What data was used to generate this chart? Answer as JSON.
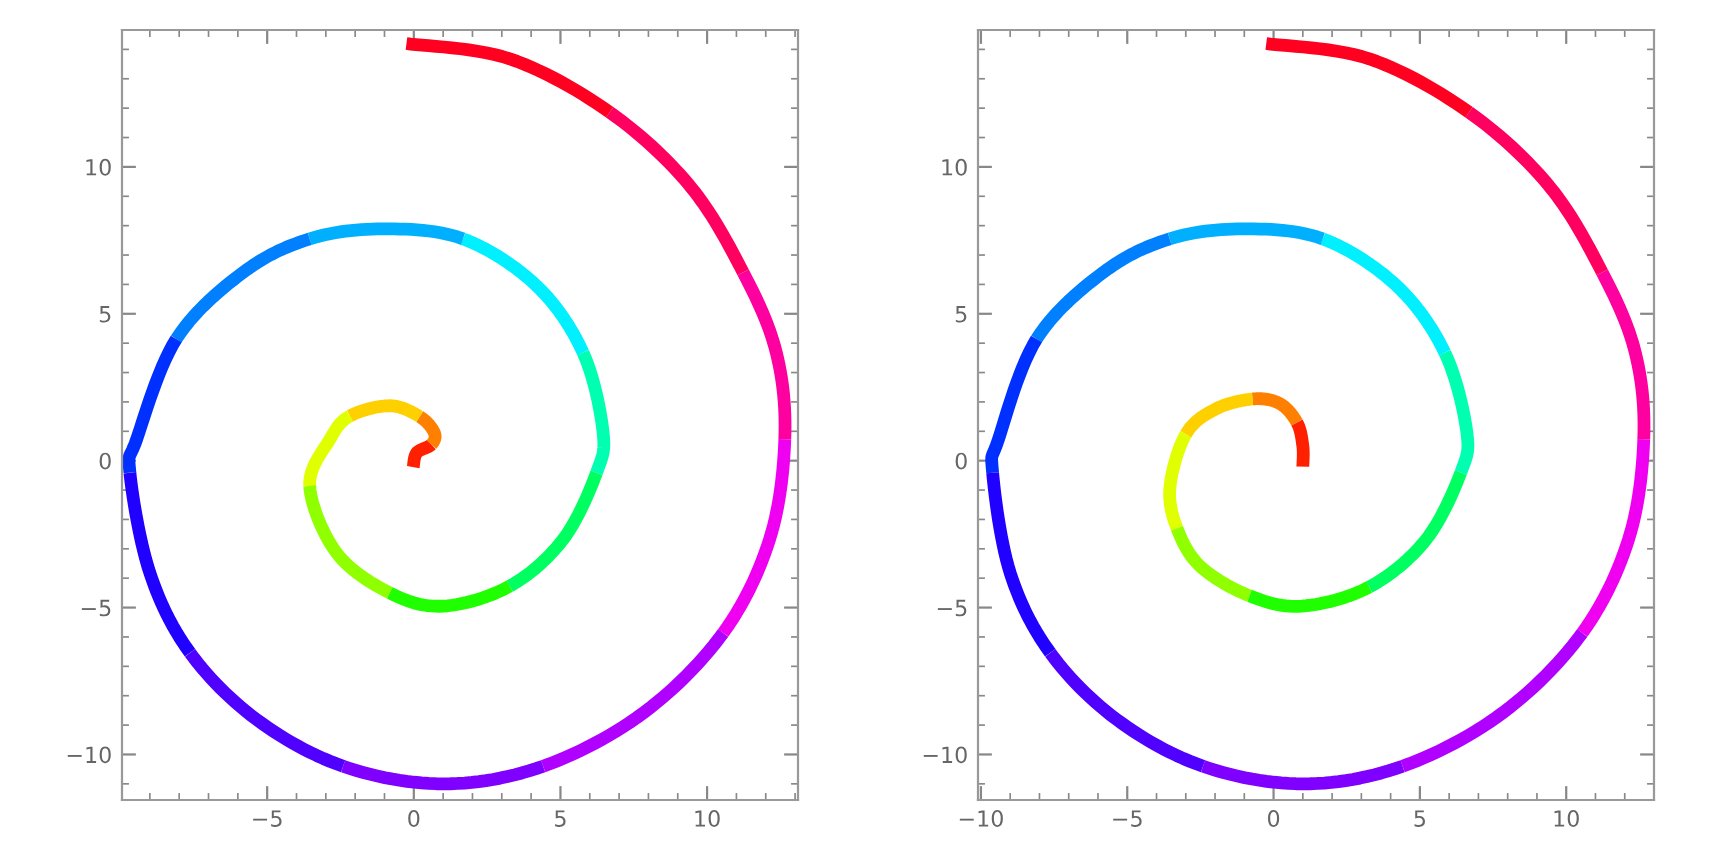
{
  "chart_data": [
    {
      "type": "line",
      "xlim": [
        -9.95,
        13.1
      ],
      "ylim": [
        -11.55,
        14.66
      ],
      "xticks": [
        -5,
        0,
        5,
        10
      ],
      "yticks": [
        -10,
        -5,
        0,
        5,
        10
      ],
      "grid": false,
      "marker": "none",
      "line_style": "solid",
      "series": [
        {
          "color": "#ff2000",
          "x": [
            -0.02,
            0.1,
            0.6
          ],
          "values": [
            -0.22,
            0.27,
            0.55
          ]
        },
        {
          "color": "#ff8000",
          "x": [
            0.6,
            0.7,
            0.2
          ],
          "values": [
            0.55,
            0.95,
            1.5
          ]
        },
        {
          "color": "#ffd000",
          "x": [
            0.2,
            -0.82,
            -2.18
          ],
          "values": [
            1.5,
            1.87,
            1.52
          ]
        },
        {
          "color": "#e0ff00",
          "x": [
            -2.18,
            -2.86,
            -3.55
          ],
          "values": [
            1.52,
            0.73,
            -0.86
          ]
        },
        {
          "color": "#90ff00",
          "x": [
            -3.55,
            -2.64,
            -0.82
          ],
          "values": [
            -0.86,
            -3.13,
            -4.5
          ]
        },
        {
          "color": "#20ff00",
          "x": [
            -0.82,
            1.0,
            3.27
          ],
          "values": [
            -4.5,
            -4.95,
            -4.27
          ]
        },
        {
          "color": "#00ff60",
          "x": [
            3.27,
            5.09,
            6.23
          ],
          "values": [
            -4.27,
            -2.68,
            -0.41
          ]
        },
        {
          "color": "#00ffb0",
          "x": [
            6.23,
            6.45,
            5.77
          ],
          "values": [
            -0.41,
            1.0,
            3.68
          ]
        },
        {
          "color": "#00f0ff",
          "x": [
            5.77,
            4.18,
            1.68
          ],
          "values": [
            3.68,
            5.96,
            7.55
          ]
        },
        {
          "color": "#00b0ff",
          "x": [
            1.68,
            -1.05,
            -3.55
          ],
          "values": [
            7.55,
            7.89,
            7.55
          ]
        },
        {
          "color": "#0080ff",
          "x": [
            -3.55,
            -5.82,
            -8.1
          ],
          "values": [
            7.55,
            6.41,
            4.14
          ]
        },
        {
          "color": "#0030ff",
          "x": [
            -8.1,
            -9.45,
            -9.68
          ],
          "values": [
            4.14,
            0.73,
            -0.41
          ]
        },
        {
          "color": "#2000ff",
          "x": [
            -9.68,
            -9.0,
            -7.63
          ],
          "values": [
            -0.41,
            -3.82,
            -6.54
          ]
        },
        {
          "color": "#5000ff",
          "x": [
            -7.63,
            -5.36,
            -2.41
          ],
          "values": [
            -6.54,
            -8.81,
            -10.4
          ]
        },
        {
          "color": "#8000ff",
          "x": [
            -2.41,
            1.0,
            4.41
          ],
          "values": [
            -10.4,
            -11.0,
            -10.4
          ]
        },
        {
          "color": "#b000ff",
          "x": [
            4.41,
            7.82,
            10.55
          ],
          "values": [
            -10.4,
            -8.59,
            -5.86
          ]
        },
        {
          "color": "#f000f0",
          "x": [
            10.55,
            12.13,
            12.65
          ],
          "values": [
            -5.86,
            -2.68,
            0.73
          ]
        },
        {
          "color": "#ff00a0",
          "x": [
            12.65,
            12.36,
            11.23
          ],
          "values": [
            0.73,
            3.68,
            6.41
          ]
        },
        {
          "color": "#ff0060",
          "x": [
            11.23,
            9.4,
            6.68
          ],
          "values": [
            6.41,
            9.37,
            11.86
          ]
        },
        {
          "color": "#ff0020",
          "x": [
            6.68,
            3.27,
            -0.25
          ],
          "values": [
            11.86,
            13.68,
            14.2
          ]
        }
      ]
    },
    {
      "type": "line",
      "xlim": [
        -10.1,
        13.0
      ],
      "ylim": [
        -11.55,
        14.66
      ],
      "xticks": [
        -10,
        -5,
        0,
        5,
        10
      ],
      "yticks": [
        -10,
        -5,
        0,
        5,
        10
      ],
      "grid": false,
      "marker": "none",
      "line_style": "solid",
      "series": [
        {
          "color": "#ff2000",
          "x": [
            1.0,
            1.0,
            0.8
          ],
          "values": [
            -0.2,
            0.5,
            1.3
          ]
        },
        {
          "color": "#ff8000",
          "x": [
            0.8,
            0.2,
            -0.72
          ],
          "values": [
            1.3,
            1.95,
            2.1
          ]
        },
        {
          "color": "#ffd000",
          "x": [
            -0.72,
            -2.0,
            -3.0
          ],
          "values": [
            2.1,
            1.75,
            0.9
          ]
        },
        {
          "color": "#e0ff00",
          "x": [
            -3.0,
            -3.54,
            -3.3
          ],
          "values": [
            0.9,
            -0.9,
            -2.3
          ]
        },
        {
          "color": "#90ff00",
          "x": [
            -3.3,
            -2.5,
            -0.82
          ],
          "values": [
            -2.3,
            -3.6,
            -4.6
          ]
        },
        {
          "color": "#20ff00",
          "x": [
            -0.82,
            0.97,
            3.27
          ],
          "values": [
            -4.6,
            -4.95,
            -4.3
          ]
        },
        {
          "color": "#00ff60",
          "x": [
            3.27,
            5.2,
            6.4
          ],
          "values": [
            -4.3,
            -2.7,
            -0.4
          ]
        },
        {
          "color": "#00ffb0",
          "x": [
            6.4,
            6.6,
            5.85
          ],
          "values": [
            -0.4,
            1.0,
            3.68
          ]
        },
        {
          "color": "#00f0ff",
          "x": [
            5.85,
            4.2,
            1.68
          ],
          "values": [
            3.68,
            5.96,
            7.55
          ]
        },
        {
          "color": "#00b0ff",
          "x": [
            1.68,
            -1.05,
            -3.55
          ],
          "values": [
            7.55,
            7.89,
            7.55
          ]
        },
        {
          "color": "#0080ff",
          "x": [
            -3.55,
            -5.82,
            -8.1
          ],
          "values": [
            7.55,
            6.41,
            4.14
          ]
        },
        {
          "color": "#0030ff",
          "x": [
            -8.1,
            -9.4,
            -9.6
          ],
          "values": [
            4.14,
            0.73,
            -0.41
          ]
        },
        {
          "color": "#2000ff",
          "x": [
            -9.6,
            -9.0,
            -7.63
          ],
          "values": [
            -0.41,
            -3.82,
            -6.54
          ]
        },
        {
          "color": "#5000ff",
          "x": [
            -7.63,
            -5.36,
            -2.41
          ],
          "values": [
            -6.54,
            -8.81,
            -10.4
          ]
        },
        {
          "color": "#8000ff",
          "x": [
            -2.41,
            1.0,
            4.41
          ],
          "values": [
            -10.4,
            -11.0,
            -10.4
          ]
        },
        {
          "color": "#b000ff",
          "x": [
            4.41,
            7.82,
            10.55
          ],
          "values": [
            -10.4,
            -8.59,
            -5.86
          ]
        },
        {
          "color": "#f000f0",
          "x": [
            10.55,
            12.13,
            12.65
          ],
          "values": [
            -5.86,
            -2.68,
            0.73
          ]
        },
        {
          "color": "#ff00a0",
          "x": [
            12.65,
            12.36,
            11.23
          ],
          "values": [
            0.73,
            3.68,
            6.41
          ]
        },
        {
          "color": "#ff0060",
          "x": [
            11.23,
            9.4,
            6.68
          ],
          "values": [
            6.41,
            9.37,
            11.86
          ]
        },
        {
          "color": "#ff0020",
          "x": [
            6.68,
            3.27,
            -0.25
          ],
          "values": [
            11.86,
            13.68,
            14.2
          ]
        }
      ]
    }
  ]
}
